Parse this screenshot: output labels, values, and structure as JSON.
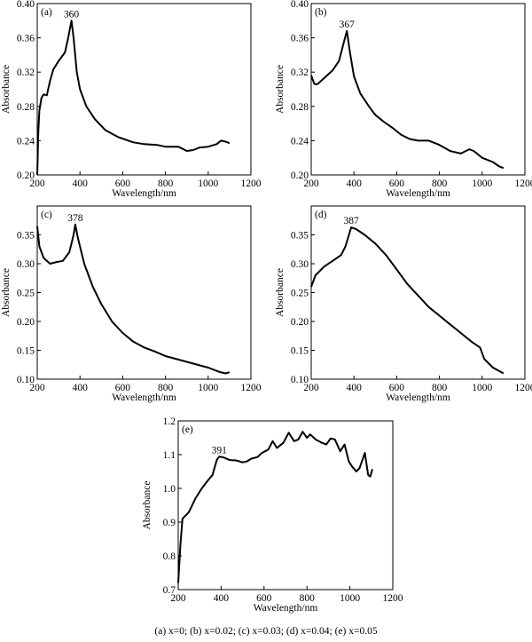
{
  "caption": "(a) x=0; (b) x=0.02; (c) x=0.03; (d) x=0.04; (e) x=0.05",
  "chart_data": [
    {
      "type": "line",
      "panel_label": "(a)",
      "xlabel": "Wavelength/nm",
      "ylabel": "Absorbance",
      "xlim": [
        200,
        1200
      ],
      "ylim": [
        0.2,
        0.4
      ],
      "xticks": [
        200,
        400,
        600,
        800,
        1000,
        1200
      ],
      "yticks": [
        0.2,
        0.24,
        0.28,
        0.32,
        0.36,
        0.4
      ],
      "ytick_labels": [
        "0.20",
        "0.24",
        "0.28",
        "0.32",
        "0.36",
        "0.40"
      ],
      "annotation": {
        "text": "360",
        "x": 360,
        "y": 0.38
      },
      "points": [
        [
          200,
          0.2
        ],
        [
          205,
          0.25
        ],
        [
          210,
          0.275
        ],
        [
          220,
          0.29
        ],
        [
          230,
          0.294
        ],
        [
          245,
          0.293
        ],
        [
          260,
          0.31
        ],
        [
          275,
          0.323
        ],
        [
          300,
          0.333
        ],
        [
          330,
          0.343
        ],
        [
          345,
          0.36
        ],
        [
          360,
          0.38
        ],
        [
          370,
          0.36
        ],
        [
          385,
          0.32
        ],
        [
          400,
          0.3
        ],
        [
          430,
          0.28
        ],
        [
          470,
          0.265
        ],
        [
          520,
          0.252
        ],
        [
          580,
          0.244
        ],
        [
          650,
          0.238
        ],
        [
          700,
          0.236
        ],
        [
          760,
          0.235
        ],
        [
          800,
          0.233
        ],
        [
          860,
          0.233
        ],
        [
          900,
          0.228
        ],
        [
          930,
          0.229
        ],
        [
          960,
          0.232
        ],
        [
          1000,
          0.233
        ],
        [
          1040,
          0.236
        ],
        [
          1060,
          0.24
        ],
        [
          1080,
          0.239
        ],
        [
          1100,
          0.237
        ]
      ]
    },
    {
      "type": "line",
      "panel_label": "(b)",
      "xlabel": "Wavelength/nm",
      "ylabel": "Absorbance",
      "xlim": [
        200,
        1200
      ],
      "ylim": [
        0.2,
        0.4
      ],
      "xticks": [
        200,
        400,
        600,
        800,
        1000,
        1200
      ],
      "yticks": [
        0.2,
        0.24,
        0.28,
        0.32,
        0.36,
        0.4
      ],
      "ytick_labels": [
        "0.20",
        "0.24",
        "0.28",
        "0.32",
        "0.36",
        "0.40"
      ],
      "annotation": {
        "text": "367",
        "x": 367,
        "y": 0.368
      },
      "points": [
        [
          200,
          0.316
        ],
        [
          215,
          0.306
        ],
        [
          230,
          0.306
        ],
        [
          260,
          0.313
        ],
        [
          300,
          0.322
        ],
        [
          330,
          0.333
        ],
        [
          350,
          0.352
        ],
        [
          367,
          0.368
        ],
        [
          380,
          0.345
        ],
        [
          400,
          0.315
        ],
        [
          430,
          0.295
        ],
        [
          470,
          0.28
        ],
        [
          500,
          0.27
        ],
        [
          540,
          0.262
        ],
        [
          580,
          0.255
        ],
        [
          620,
          0.247
        ],
        [
          660,
          0.242
        ],
        [
          700,
          0.24
        ],
        [
          750,
          0.24
        ],
        [
          800,
          0.235
        ],
        [
          850,
          0.228
        ],
        [
          900,
          0.225
        ],
        [
          940,
          0.23
        ],
        [
          960,
          0.228
        ],
        [
          1000,
          0.22
        ],
        [
          1050,
          0.215
        ],
        [
          1080,
          0.21
        ],
        [
          1100,
          0.208
        ]
      ]
    },
    {
      "type": "line",
      "panel_label": "(c)",
      "xlabel": "Wavelength/nm",
      "ylabel": "Absorbance",
      "xlim": [
        200,
        1200
      ],
      "ylim": [
        0.1,
        0.4
      ],
      "xticks": [
        200,
        400,
        600,
        800,
        1000,
        1200
      ],
      "yticks": [
        0.1,
        0.15,
        0.2,
        0.25,
        0.3,
        0.35
      ],
      "ytick_labels": [
        "0.10",
        "0.15",
        "0.20",
        "0.25",
        "0.30",
        "0.35"
      ],
      "annotation": {
        "text": "378",
        "x": 378,
        "y": 0.368
      },
      "points": [
        [
          200,
          0.365
        ],
        [
          210,
          0.33
        ],
        [
          230,
          0.31
        ],
        [
          260,
          0.3
        ],
        [
          290,
          0.303
        ],
        [
          320,
          0.305
        ],
        [
          350,
          0.32
        ],
        [
          370,
          0.35
        ],
        [
          378,
          0.368
        ],
        [
          390,
          0.345
        ],
        [
          420,
          0.3
        ],
        [
          460,
          0.26
        ],
        [
          500,
          0.23
        ],
        [
          550,
          0.2
        ],
        [
          600,
          0.18
        ],
        [
          650,
          0.165
        ],
        [
          700,
          0.155
        ],
        [
          750,
          0.148
        ],
        [
          800,
          0.14
        ],
        [
          900,
          0.13
        ],
        [
          1000,
          0.12
        ],
        [
          1050,
          0.113
        ],
        [
          1080,
          0.11
        ],
        [
          1100,
          0.112
        ]
      ]
    },
    {
      "type": "line",
      "panel_label": "(d)",
      "xlabel": "Wavelength/nm",
      "ylabel": "Absorbance",
      "xlim": [
        200,
        1200
      ],
      "ylim": [
        0.1,
        0.4
      ],
      "xticks": [
        200,
        400,
        600,
        800,
        1000,
        1200
      ],
      "yticks": [
        0.1,
        0.15,
        0.2,
        0.25,
        0.3,
        0.35
      ],
      "ytick_labels": [
        "0.10",
        "0.15",
        "0.20",
        "0.25",
        "0.30",
        "0.35"
      ],
      "annotation": {
        "text": "387",
        "x": 387,
        "y": 0.363
      },
      "points": [
        [
          200,
          0.26
        ],
        [
          220,
          0.28
        ],
        [
          260,
          0.295
        ],
        [
          300,
          0.305
        ],
        [
          340,
          0.315
        ],
        [
          360,
          0.33
        ],
        [
          387,
          0.363
        ],
        [
          410,
          0.36
        ],
        [
          450,
          0.35
        ],
        [
          500,
          0.335
        ],
        [
          550,
          0.315
        ],
        [
          600,
          0.29
        ],
        [
          650,
          0.265
        ],
        [
          700,
          0.245
        ],
        [
          750,
          0.225
        ],
        [
          800,
          0.21
        ],
        [
          850,
          0.195
        ],
        [
          900,
          0.18
        ],
        [
          950,
          0.165
        ],
        [
          990,
          0.155
        ],
        [
          1010,
          0.135
        ],
        [
          1050,
          0.12
        ],
        [
          1100,
          0.11
        ]
      ]
    },
    {
      "type": "line",
      "panel_label": "(e)",
      "xlabel": "Wavelength/nm",
      "ylabel": "Absorbance",
      "xlim": [
        200,
        1200
      ],
      "ylim": [
        0.7,
        1.2
      ],
      "xticks": [
        200,
        400,
        600,
        800,
        1000,
        1200
      ],
      "yticks": [
        0.7,
        0.8,
        0.9,
        1.0,
        1.1,
        1.2
      ],
      "ytick_labels": [
        "0.7",
        "0.8",
        "0.9",
        "1.0",
        "1.1",
        "1.2"
      ],
      "annotation": {
        "text": "391",
        "x": 391,
        "y": 1.094
      },
      "points": [
        [
          200,
          0.72
        ],
        [
          210,
          0.83
        ],
        [
          220,
          0.91
        ],
        [
          235,
          0.92
        ],
        [
          250,
          0.93
        ],
        [
          280,
          0.97
        ],
        [
          310,
          1.0
        ],
        [
          340,
          1.025
        ],
        [
          360,
          1.04
        ],
        [
          380,
          1.085
        ],
        [
          391,
          1.094
        ],
        [
          410,
          1.092
        ],
        [
          440,
          1.084
        ],
        [
          470,
          1.083
        ],
        [
          500,
          1.077
        ],
        [
          520,
          1.08
        ],
        [
          540,
          1.088
        ],
        [
          570,
          1.093
        ],
        [
          590,
          1.105
        ],
        [
          620,
          1.115
        ],
        [
          640,
          1.14
        ],
        [
          660,
          1.12
        ],
        [
          690,
          1.135
        ],
        [
          715,
          1.165
        ],
        [
          740,
          1.14
        ],
        [
          760,
          1.145
        ],
        [
          780,
          1.168
        ],
        [
          800,
          1.15
        ],
        [
          815,
          1.16
        ],
        [
          840,
          1.145
        ],
        [
          870,
          1.135
        ],
        [
          890,
          1.13
        ],
        [
          910,
          1.148
        ],
        [
          930,
          1.145
        ],
        [
          955,
          1.11
        ],
        [
          975,
          1.13
        ],
        [
          995,
          1.08
        ],
        [
          1010,
          1.065
        ],
        [
          1030,
          1.05
        ],
        [
          1045,
          1.06
        ],
        [
          1070,
          1.105
        ],
        [
          1085,
          1.04
        ],
        [
          1095,
          1.035
        ],
        [
          1105,
          1.057
        ]
      ]
    }
  ]
}
